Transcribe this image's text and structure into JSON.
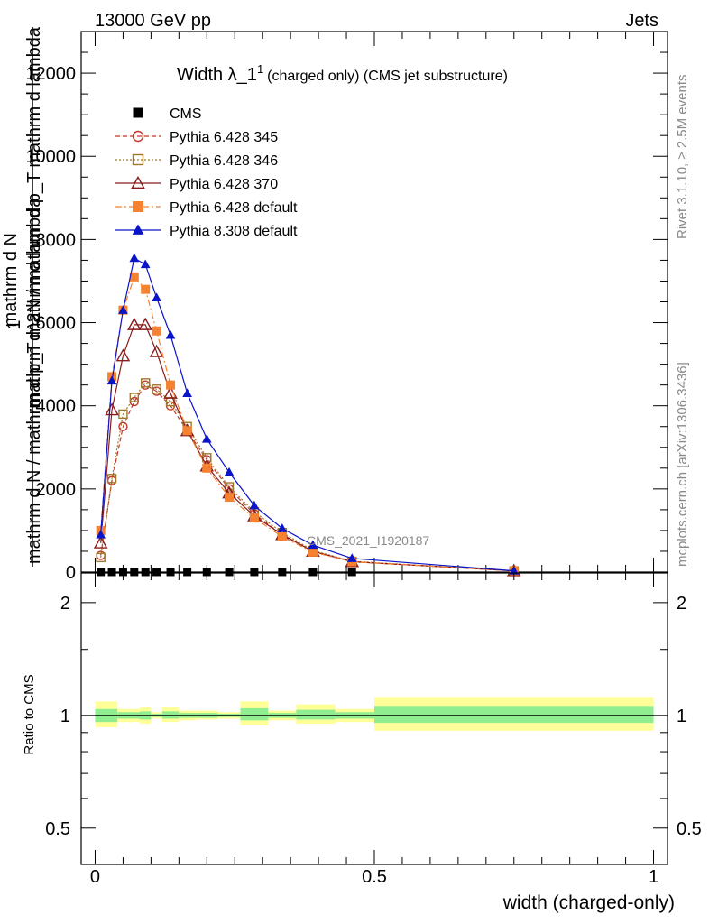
{
  "header": {
    "left": "13000 GeV pp",
    "right": "Jets"
  },
  "side_text": {
    "rivet": "Rivet 3.1.10, ≥ 2.5M events",
    "mcplots": "mcplots.cern.ch [arXiv:1306.3436]"
  },
  "watermark": "CMS_2021_I1920187",
  "chart_data": [
    {
      "type": "line",
      "title": "Width λ_1¹ (charged only) (CMS jet substructure)",
      "title_parts": {
        "main": "Width λ_1",
        "sup": "1",
        "sub": "(charged only) (CMS jet substructure)"
      },
      "ylabel_top": "1",
      "ylabel_outer": "mathrm d N / mathrm d p_T mathrm d lambda",
      "ylabel_inner": "mathrm d^2N / mathrm d p_T mathrm d lambda",
      "ylabel_a": "mathrm d N",
      "ylabel_b": "mathrm d p",
      "xlim": [
        -0.025,
        1.025
      ],
      "ylim": [
        0,
        13000
      ],
      "yticks": [
        0,
        2000,
        4000,
        6000,
        8000,
        10000,
        12000
      ],
      "ytick_labels": [
        "0",
        "2000",
        "4000",
        "6000",
        "8000",
        "10000",
        "12000"
      ],
      "legend_position": "top-left",
      "series": [
        {
          "name": "CMS",
          "color": "#000000",
          "marker": "square-filled",
          "dash": "none",
          "x": [
            0.01,
            0.03,
            0.05,
            0.07,
            0.09,
            0.11,
            0.135,
            0.165,
            0.2,
            0.24,
            0.285,
            0.335,
            0.39,
            0.46,
            0.75
          ],
          "y": [
            1,
            1,
            1,
            1,
            1,
            1,
            1,
            1,
            1,
            1,
            1,
            1,
            1,
            1,
            1
          ]
        },
        {
          "name": "Pythia 6.428 345",
          "color": "#c0392b",
          "marker": "circle-open",
          "dash": "5,3",
          "x": [
            0.01,
            0.03,
            0.05,
            0.07,
            0.09,
            0.11,
            0.135,
            0.165,
            0.2,
            0.24,
            0.285,
            0.335,
            0.39,
            0.46,
            0.75
          ],
          "y": [
            400,
            2200,
            3500,
            4100,
            4500,
            4350,
            4000,
            3400,
            2700,
            2000,
            1400,
            900,
            500,
            250,
            30
          ]
        },
        {
          "name": "Pythia 6.428 346",
          "color": "#a0782b",
          "marker": "square-open",
          "dash": "2,2",
          "x": [
            0.01,
            0.03,
            0.05,
            0.07,
            0.09,
            0.11,
            0.135,
            0.165,
            0.2,
            0.24,
            0.285,
            0.335,
            0.39,
            0.46,
            0.75
          ],
          "y": [
            350,
            2250,
            3800,
            4200,
            4550,
            4400,
            4100,
            3500,
            2750,
            2050,
            1450,
            950,
            520,
            260,
            30
          ]
        },
        {
          "name": "Pythia 6.428 370",
          "color": "#8b1a1a",
          "marker": "triangle-open",
          "dash": "none",
          "x": [
            0.01,
            0.03,
            0.05,
            0.07,
            0.09,
            0.11,
            0.135,
            0.165,
            0.2,
            0.24,
            0.285,
            0.335,
            0.39,
            0.46,
            0.75
          ],
          "y": [
            700,
            3900,
            5200,
            5950,
            5950,
            5300,
            4300,
            3400,
            2550,
            1900,
            1350,
            900,
            500,
            250,
            30
          ]
        },
        {
          "name": "Pythia 6.428 default",
          "color": "#f58231",
          "marker": "square-filled",
          "dash": "7,3,2,3",
          "x": [
            0.01,
            0.03,
            0.05,
            0.07,
            0.09,
            0.11,
            0.135,
            0.165,
            0.2,
            0.24,
            0.285,
            0.335,
            0.39,
            0.46,
            0.75
          ],
          "y": [
            1000,
            4700,
            6300,
            7100,
            6800,
            5800,
            4500,
            3400,
            2500,
            1800,
            1300,
            850,
            480,
            250,
            30
          ]
        },
        {
          "name": "Pythia 8.308 default",
          "color": "#0a14c8",
          "marker": "triangle-filled",
          "dash": "none",
          "x": [
            0.01,
            0.03,
            0.05,
            0.07,
            0.09,
            0.11,
            0.135,
            0.165,
            0.2,
            0.24,
            0.285,
            0.335,
            0.39,
            0.46,
            0.75
          ],
          "y": [
            900,
            4600,
            6300,
            7550,
            7400,
            6600,
            5700,
            4300,
            3200,
            2400,
            1600,
            1050,
            650,
            330,
            30
          ]
        }
      ]
    },
    {
      "type": "line",
      "xlabel": "width (charged-only)",
      "ylabel": "Ratio to CMS",
      "xlim": [
        -0.025,
        1.025
      ],
      "ylim": [
        0.4,
        2.4
      ],
      "yscale": "log",
      "yticks": [
        0.5,
        1,
        2
      ],
      "ytick_labels": [
        "0.5",
        "1",
        "2"
      ],
      "xticks": [
        0,
        0.5,
        1
      ],
      "xtick_labels": [
        "0",
        "0.5",
        "1"
      ],
      "reference_line": 1,
      "bands": [
        {
          "x0": 0.0,
          "x1": 0.04,
          "yellow": [
            0.93,
            1.09
          ],
          "green": [
            0.96,
            1.04
          ]
        },
        {
          "x0": 0.04,
          "x1": 0.08,
          "yellow": [
            0.96,
            1.04
          ],
          "green": [
            0.98,
            1.02
          ]
        },
        {
          "x0": 0.08,
          "x1": 0.1,
          "yellow": [
            0.95,
            1.05
          ],
          "green": [
            0.975,
            1.025
          ]
        },
        {
          "x0": 0.1,
          "x1": 0.12,
          "yellow": [
            0.98,
            1.02
          ],
          "green": [
            0.99,
            1.01
          ]
        },
        {
          "x0": 0.12,
          "x1": 0.15,
          "yellow": [
            0.96,
            1.05
          ],
          "green": [
            0.98,
            1.025
          ]
        },
        {
          "x0": 0.15,
          "x1": 0.18,
          "yellow": [
            0.97,
            1.03
          ],
          "green": [
            0.985,
            1.015
          ]
        },
        {
          "x0": 0.18,
          "x1": 0.22,
          "yellow": [
            0.975,
            1.03
          ],
          "green": [
            0.985,
            1.015
          ]
        },
        {
          "x0": 0.22,
          "x1": 0.26,
          "yellow": [
            0.98,
            1.02
          ],
          "green": [
            0.99,
            1.01
          ]
        },
        {
          "x0": 0.26,
          "x1": 0.31,
          "yellow": [
            0.94,
            1.09
          ],
          "green": [
            0.97,
            1.045
          ]
        },
        {
          "x0": 0.31,
          "x1": 0.36,
          "yellow": [
            0.97,
            1.03
          ],
          "green": [
            0.985,
            1.015
          ]
        },
        {
          "x0": 0.36,
          "x1": 0.43,
          "yellow": [
            0.95,
            1.07
          ],
          "green": [
            0.975,
            1.035
          ]
        },
        {
          "x0": 0.43,
          "x1": 0.5,
          "yellow": [
            0.96,
            1.04
          ],
          "green": [
            0.98,
            1.02
          ]
        },
        {
          "x0": 0.5,
          "x1": 1.0,
          "yellow": [
            0.91,
            1.12
          ],
          "green": [
            0.955,
            1.06
          ]
        }
      ]
    }
  ]
}
